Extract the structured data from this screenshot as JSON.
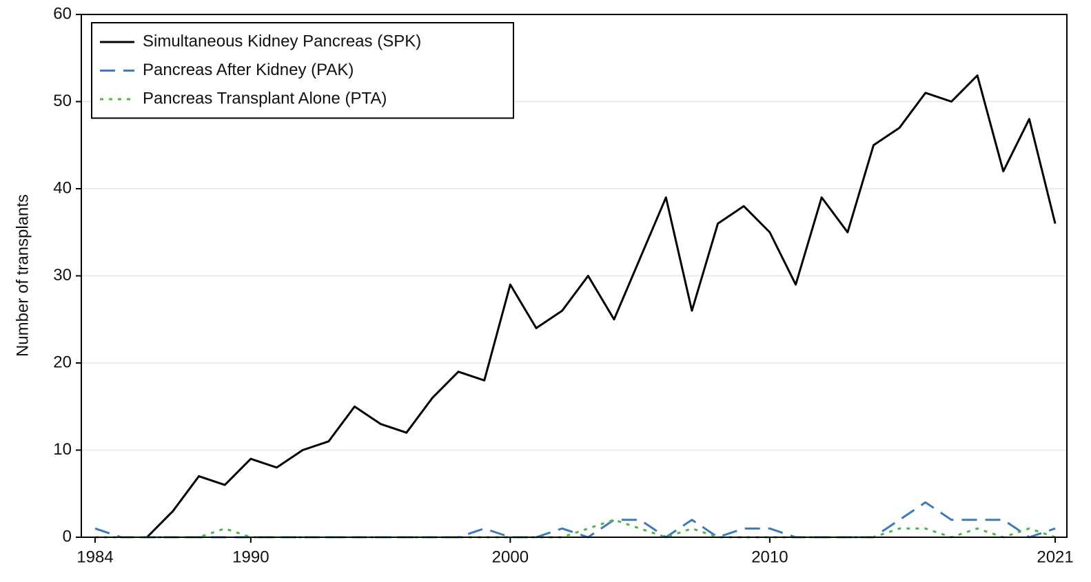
{
  "chart_data": {
    "type": "line",
    "ylabel": "Number of transplants",
    "x": [
      1984,
      1985,
      1986,
      1987,
      1988,
      1989,
      1990,
      1991,
      1992,
      1993,
      1994,
      1995,
      1996,
      1997,
      1998,
      1999,
      2000,
      2001,
      2002,
      2003,
      2004,
      2005,
      2006,
      2007,
      2008,
      2009,
      2010,
      2011,
      2012,
      2013,
      2014,
      2015,
      2016,
      2017,
      2018,
      2019,
      2020,
      2021
    ],
    "series": [
      {
        "name": "Simultaneous Kidney Pancreas (SPK)",
        "color": "#000000",
        "dash": "solid",
        "values": [
          null,
          null,
          0,
          3,
          7,
          6,
          9,
          8,
          10,
          11,
          15,
          13,
          12,
          16,
          19,
          18,
          29,
          24,
          26,
          30,
          25,
          32,
          39,
          26,
          36,
          38,
          35,
          29,
          39,
          35,
          45,
          47,
          51,
          50,
          53,
          42,
          48,
          36
        ]
      },
      {
        "name": "Pancreas After Kidney (PAK)",
        "color": "#3b7cb8",
        "dash": "dashed",
        "values": [
          1,
          0,
          0,
          0,
          0,
          0,
          0,
          0,
          0,
          0,
          0,
          0,
          0,
          0,
          0,
          1,
          0,
          0,
          1,
          0,
          2,
          2,
          0,
          2,
          0,
          1,
          1,
          0,
          0,
          0,
          0,
          2,
          4,
          2,
          2,
          2,
          0,
          1
        ]
      },
      {
        "name": "Pancreas Transplant Alone (PTA)",
        "color": "#4cb848",
        "dash": "dotted",
        "values": [
          0,
          0,
          0,
          0,
          0,
          1,
          0,
          0,
          0,
          0,
          0,
          0,
          0,
          0,
          0,
          0,
          0,
          0,
          0,
          1,
          2,
          1,
          0,
          1,
          0,
          0,
          0,
          0,
          0,
          0,
          0,
          1,
          1,
          0,
          1,
          0,
          1,
          0
        ]
      }
    ],
    "xlim": [
      1983.47,
      2021.45
    ],
    "xticks": [
      1984,
      1990,
      2000,
      2010,
      2021
    ],
    "ylim": [
      0,
      60
    ],
    "yticks": [
      0,
      10,
      20,
      30,
      40,
      50,
      60
    ],
    "grid": true,
    "legend": "upper left"
  }
}
